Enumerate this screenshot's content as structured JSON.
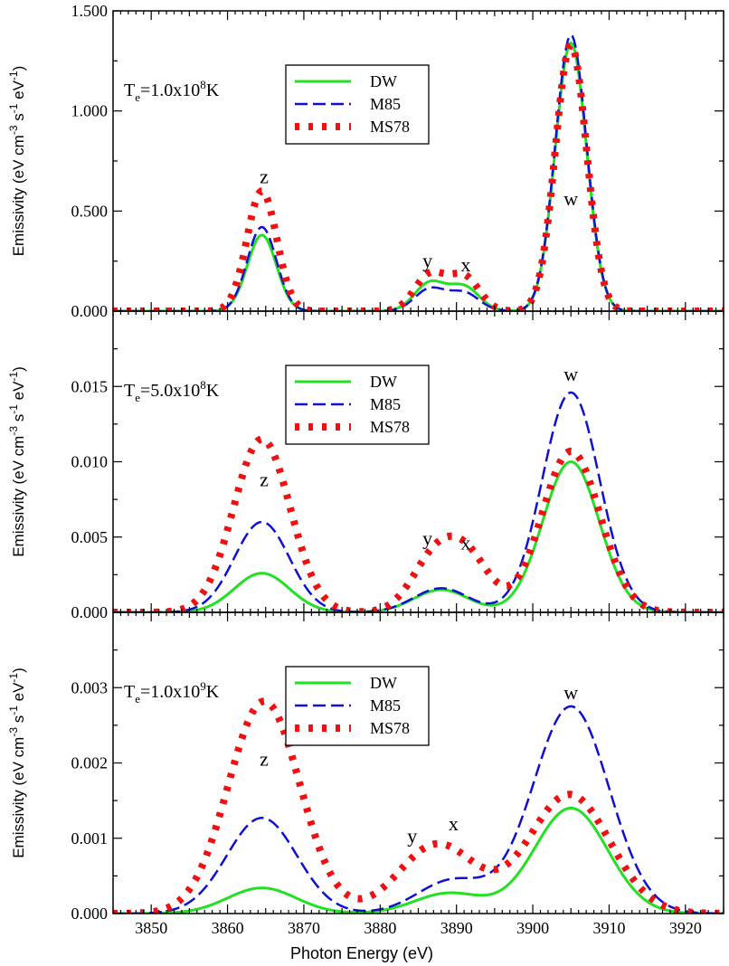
{
  "figure": {
    "xlabel": "Photon Energy (eV)",
    "xlim": [
      3845,
      3925
    ],
    "xticks": [
      3850,
      3860,
      3870,
      3880,
      3890,
      3900,
      3910,
      3920
    ],
    "colors": {
      "DW": "#22e022",
      "M85": "#1010d0",
      "MS78": "#ee1111"
    }
  },
  "chart_data": [
    {
      "type": "line",
      "temperature": {
        "base": "T",
        "sub": "e",
        "mid": "=1.0x10",
        "sup": "8",
        "unit": "K"
      },
      "ylabel": {
        "main": "Emissivity (eV cm",
        "e1": "-3",
        "s": " s",
        "e2": "-1",
        "ev": " eV",
        "e3": "-1",
        "close": ")"
      },
      "ylim": [
        0,
        1.5
      ],
      "yticks": [
        0,
        0.5,
        1.0,
        1.5
      ],
      "ytick_labels": [
        "0.000",
        "0.500",
        "1.000",
        "1.500"
      ],
      "legend": [
        "DW",
        "M85",
        "MS78"
      ],
      "annotations": [
        {
          "text": "z",
          "x": 3864.8,
          "y": 0.67
        },
        {
          "text": "y",
          "x": 3886.2,
          "y": 0.25
        },
        {
          "text": "x",
          "x": 3891.2,
          "y": 0.23
        },
        {
          "text": "w",
          "x": 3905.0,
          "y": 0.56
        }
      ],
      "series": [
        {
          "name": "DW",
          "style": "solid",
          "components": [
            {
              "center": 3864.5,
              "width": 1.9,
              "amp": 0.38
            },
            {
              "center": 3886.5,
              "width": 2.0,
              "amp": 0.14
            },
            {
              "center": 3891.0,
              "width": 2.0,
              "amp": 0.12
            },
            {
              "center": 3905.0,
              "width": 2.05,
              "amp": 1.34
            }
          ]
        },
        {
          "name": "M85",
          "style": "dashed",
          "components": [
            {
              "center": 3864.5,
              "width": 1.9,
              "amp": 0.42
            },
            {
              "center": 3886.5,
              "width": 2.0,
              "amp": 0.11
            },
            {
              "center": 3891.0,
              "width": 2.0,
              "amp": 0.09
            },
            {
              "center": 3905.0,
              "width": 2.05,
              "amp": 1.38
            }
          ]
        },
        {
          "name": "MS78",
          "style": "dotted",
          "components": [
            {
              "center": 3864.5,
              "width": 1.95,
              "amp": 0.6
            },
            {
              "center": 3886.5,
              "width": 2.0,
              "amp": 0.18
            },
            {
              "center": 3891.0,
              "width": 2.0,
              "amp": 0.17
            },
            {
              "center": 3905.0,
              "width": 2.05,
              "amp": 1.33
            }
          ]
        }
      ]
    },
    {
      "type": "line",
      "temperature": {
        "base": "T",
        "sub": "e",
        "mid": "=5.0x10",
        "sup": "8",
        "unit": "K"
      },
      "ylabel": {
        "main": "Emissivity (eV cm",
        "e1": "-3",
        "s": " s",
        "e2": "-1",
        "ev": " eV",
        "e3": "-1",
        "close": ")"
      },
      "ylim": [
        0,
        0.02
      ],
      "yticks": [
        0,
        0.005,
        0.01,
        0.015
      ],
      "ytick_labels": [
        "0.000",
        "0.005",
        "0.010",
        "0.015"
      ],
      "legend": [
        "DW",
        "M85",
        "MS78"
      ],
      "annotations": [
        {
          "text": "z",
          "x": 3864.8,
          "y": 0.0088
        },
        {
          "text": "y",
          "x": 3886.2,
          "y": 0.0049
        },
        {
          "text": "x",
          "x": 3891.2,
          "y": 0.0046
        },
        {
          "text": "w",
          "x": 3905.0,
          "y": 0.0158
        }
      ],
      "series": [
        {
          "name": "DW",
          "style": "solid",
          "components": [
            {
              "center": 3864.5,
              "width": 3.6,
              "amp": 0.0026
            },
            {
              "center": 3888.0,
              "width": 3.6,
              "amp": 0.0015
            },
            {
              "center": 3905.0,
              "width": 3.7,
              "amp": 0.01
            }
          ]
        },
        {
          "name": "M85",
          "style": "dashed",
          "components": [
            {
              "center": 3864.5,
              "width": 3.6,
              "amp": 0.006
            },
            {
              "center": 3888.0,
              "width": 3.6,
              "amp": 0.0016
            },
            {
              "center": 3905.0,
              "width": 3.75,
              "amp": 0.0146
            }
          ]
        },
        {
          "name": "MS78",
          "style": "dotted",
          "components": [
            {
              "center": 3864.5,
              "width": 3.7,
              "amp": 0.0115
            },
            {
              "center": 3887.0,
              "width": 3.0,
              "amp": 0.0033
            },
            {
              "center": 3891.5,
              "width": 3.0,
              "amp": 0.0034
            },
            {
              "center": 3905.0,
              "width": 3.8,
              "amp": 0.0107
            }
          ]
        }
      ]
    },
    {
      "type": "line",
      "temperature": {
        "base": "T",
        "sub": "e",
        "mid": "=1.0x10",
        "sup": "9",
        "unit": "K"
      },
      "ylabel": {
        "main": "Emissivity (eV cm",
        "e1": "-3",
        "s": " s",
        "e2": "-1",
        "ev": " eV",
        "e3": "-1",
        "close": ")"
      },
      "ylim": [
        0,
        0.004
      ],
      "yticks": [
        0,
        0.001,
        0.002,
        0.003
      ],
      "ytick_labels": [
        "0.000",
        "0.001",
        "0.002",
        "0.003"
      ],
      "legend": [
        "DW",
        "M85",
        "MS78"
      ],
      "annotations": [
        {
          "text": "z",
          "x": 3864.8,
          "y": 0.00205
        },
        {
          "text": "y",
          "x": 3884.2,
          "y": 0.00103
        },
        {
          "text": "x",
          "x": 3889.6,
          "y": 0.00119
        },
        {
          "text": "w",
          "x": 3905.0,
          "y": 0.00293
        }
      ],
      "series": [
        {
          "name": "DW",
          "style": "solid",
          "components": [
            {
              "center": 3864.5,
              "width": 4.5,
              "amp": 0.00034
            },
            {
              "center": 3889.0,
              "width": 4.5,
              "amp": 0.00027
            },
            {
              "center": 3905.0,
              "width": 4.8,
              "amp": 0.0014
            }
          ]
        },
        {
          "name": "M85",
          "style": "dashed",
          "components": [
            {
              "center": 3864.5,
              "width": 4.6,
              "amp": 0.00127
            },
            {
              "center": 3889.5,
              "width": 4.6,
              "amp": 0.00044
            },
            {
              "center": 3905.0,
              "width": 5.0,
              "amp": 0.00275
            }
          ]
        },
        {
          "name": "MS78",
          "style": "dotted",
          "components": [
            {
              "center": 3864.8,
              "width": 4.7,
              "amp": 0.00282
            },
            {
              "center": 3887.5,
              "width": 5.0,
              "amp": 0.00092
            },
            {
              "center": 3904.8,
              "width": 5.3,
              "amp": 0.00158
            }
          ]
        }
      ]
    }
  ]
}
